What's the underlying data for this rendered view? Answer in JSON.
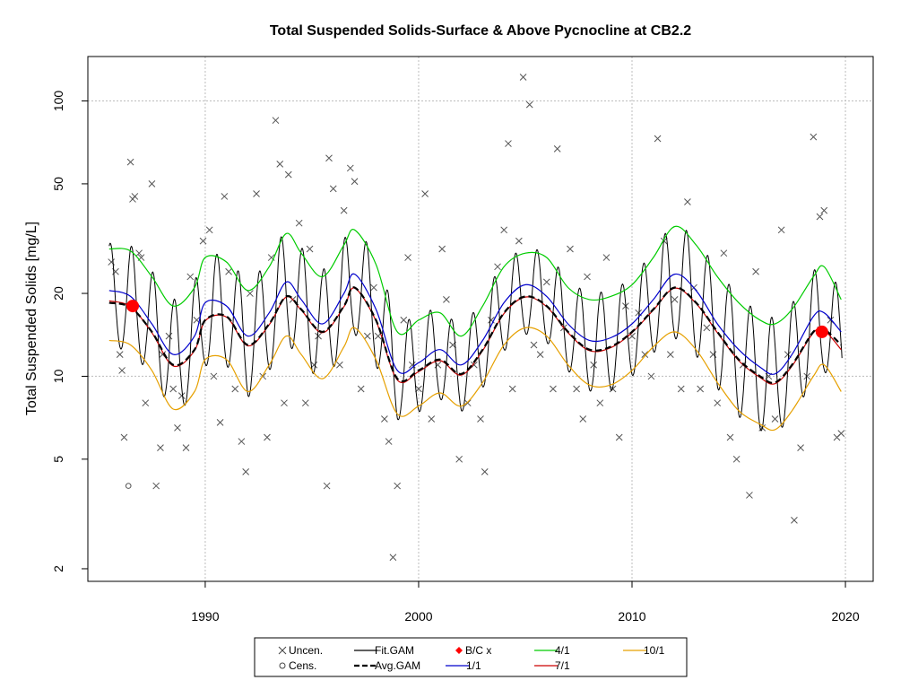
{
  "chart_data": {
    "type": "line",
    "title": "Total Suspended Solids-Surface & Above Pycnocline at CB2.2",
    "xlabel": "",
    "ylabel": "Total Suspended Solids [mg/L]",
    "y_scale": "log",
    "xlim": [
      1984.5,
      2021.3
    ],
    "ylim": [
      1.8,
      145
    ],
    "x_ticks": [
      1990,
      2000,
      2010,
      2020
    ],
    "y_ticks": [
      2,
      5,
      10,
      20,
      50,
      100
    ],
    "grid": true,
    "legend_position": "bottom",
    "legend": [
      {
        "label": "Uncen.",
        "symbol": "x",
        "color": "#444444"
      },
      {
        "label": "Cens.",
        "symbol": "o",
        "color": "#444444"
      },
      {
        "label": "Fit.GAM",
        "symbol": "line",
        "color": "#000000"
      },
      {
        "label": "Avg.GAM",
        "symbol": "dashed",
        "color": "#000000"
      },
      {
        "label": "B/C x",
        "symbol": "diamond",
        "color": "#ff0000"
      },
      {
        "label": "1/1",
        "symbol": "line",
        "color": "#0000cc"
      },
      {
        "label": "4/1",
        "symbol": "line",
        "color": "#00cc00"
      },
      {
        "label": "7/1",
        "symbol": "line",
        "color": "#cc0000"
      },
      {
        "label": "10/1",
        "symbol": "line",
        "color": "#e6a000"
      }
    ],
    "series": [
      {
        "name": "Avg.GAM",
        "x": [
          1985.5,
          1986.5,
          1987.5,
          1988.5,
          1989.5,
          1990.0,
          1991.0,
          1992.0,
          1993.0,
          1993.8,
          1994.5,
          1995.5,
          1996.5,
          1997.0,
          1998.0,
          1999.0,
          2000.0,
          2001.0,
          2002.0,
          2003.0,
          2004.0,
          2005.0,
          2006.0,
          2007.0,
          2008.0,
          2009.0,
          2010.0,
          2011.0,
          2012.0,
          2013.0,
          2014.0,
          2015.0,
          2016.0,
          2016.7,
          2017.5,
          2018.5,
          2019.0,
          2019.8
        ],
        "values": [
          18.5,
          17.8,
          14.5,
          11.0,
          12.5,
          16.0,
          16.5,
          13.0,
          15.5,
          19.5,
          17.5,
          14.5,
          18.0,
          21.0,
          16.0,
          9.8,
          10.5,
          11.5,
          10.2,
          12.5,
          17.0,
          19.5,
          18.0,
          14.5,
          12.5,
          12.8,
          14.5,
          17.5,
          21.0,
          18.5,
          14.5,
          11.5,
          10.0,
          9.5,
          11.0,
          14.5,
          14.8,
          13.0
        ]
      },
      {
        "name": "1/1",
        "x": [
          1985.5,
          1986.5,
          1987.5,
          1988.5,
          1989.5,
          1990.0,
          1991.0,
          1992.0,
          1993.0,
          1993.8,
          1994.5,
          1995.5,
          1996.5,
          1997.0,
          1998.0,
          1999.0,
          2000.0,
          2001.0,
          2002.0,
          2003.0,
          2004.0,
          2005.0,
          2006.0,
          2007.0,
          2008.0,
          2009.0,
          2010.0,
          2011.0,
          2012.0,
          2013.0,
          2014.0,
          2015.0,
          2016.0,
          2016.7,
          2017.5,
          2018.5,
          2019.0,
          2019.8
        ],
        "values": [
          20.5,
          19.5,
          15.5,
          12.0,
          14.0,
          18.5,
          18.0,
          14.0,
          17.0,
          22.0,
          19.0,
          15.5,
          20.0,
          23.5,
          17.5,
          10.5,
          11.2,
          12.5,
          11.0,
          13.5,
          18.5,
          21.5,
          19.5,
          15.5,
          13.5,
          13.8,
          15.5,
          19.0,
          23.5,
          20.5,
          15.5,
          12.5,
          10.8,
          10.2,
          12.0,
          16.5,
          17.0,
          14.5
        ]
      },
      {
        "name": "4/1",
        "x": [
          1985.5,
          1986.5,
          1987.5,
          1988.5,
          1989.5,
          1990.0,
          1991.0,
          1992.0,
          1993.0,
          1993.8,
          1994.5,
          1995.5,
          1996.5,
          1997.0,
          1998.0,
          1999.0,
          2000.0,
          2001.0,
          2002.0,
          2003.0,
          2004.0,
          2005.0,
          2006.0,
          2007.0,
          2008.0,
          2009.0,
          2010.0,
          2011.0,
          2012.0,
          2013.0,
          2014.0,
          2015.0,
          2016.0,
          2016.7,
          2017.5,
          2018.5,
          2019.0,
          2019.8
        ],
        "values": [
          29.0,
          28.5,
          23.0,
          18.0,
          21.0,
          27.0,
          26.0,
          20.5,
          25.0,
          33.0,
          28.0,
          23.0,
          30.0,
          34.0,
          25.5,
          14.5,
          16.0,
          17.0,
          14.0,
          18.0,
          25.0,
          28.0,
          27.0,
          21.0,
          19.0,
          19.5,
          21.5,
          27.0,
          35.0,
          30.0,
          23.0,
          18.5,
          16.0,
          15.5,
          17.5,
          23.0,
          25.0,
          19.0
        ]
      },
      {
        "name": "7/1",
        "x": [
          1985.5,
          1986.5,
          1987.5,
          1988.5,
          1989.5,
          1990.0,
          1991.0,
          1992.0,
          1993.0,
          1993.8,
          1994.5,
          1995.5,
          1996.5,
          1997.0,
          1998.0,
          1999.0,
          2000.0,
          2001.0,
          2002.0,
          2003.0,
          2004.0,
          2005.0,
          2006.0,
          2007.0,
          2008.0,
          2009.0,
          2010.0,
          2011.0,
          2012.0,
          2013.0,
          2014.0,
          2015.0,
          2016.0,
          2016.7,
          2017.5,
          2018.5,
          2019.0,
          2019.8
        ],
        "values": [
          18.8,
          17.9,
          14.4,
          10.9,
          12.4,
          15.9,
          16.4,
          12.9,
          15.4,
          19.4,
          17.4,
          14.4,
          17.9,
          20.9,
          15.9,
          9.7,
          10.4,
          11.4,
          10.1,
          12.4,
          16.9,
          19.4,
          17.9,
          14.4,
          12.4,
          12.7,
          14.4,
          17.4,
          20.9,
          18.4,
          14.4,
          11.4,
          9.9,
          9.4,
          10.9,
          14.4,
          14.7,
          12.5
        ]
      },
      {
        "name": "10/1",
        "x": [
          1985.5,
          1986.5,
          1987.5,
          1988.5,
          1989.5,
          1990.0,
          1991.0,
          1992.0,
          1993.0,
          1993.8,
          1994.5,
          1995.5,
          1996.5,
          1997.0,
          1998.0,
          1999.0,
          2000.0,
          2001.0,
          2002.0,
          2003.0,
          2004.0,
          2005.0,
          2006.0,
          2007.0,
          2008.0,
          2009.0,
          2010.0,
          2011.0,
          2012.0,
          2013.0,
          2014.0,
          2015.0,
          2016.0,
          2016.7,
          2017.5,
          2018.5,
          2019.0,
          2019.8
        ],
        "values": [
          13.5,
          13.0,
          10.5,
          7.6,
          8.8,
          11.5,
          11.5,
          8.8,
          11.0,
          14.0,
          12.0,
          9.8,
          12.8,
          15.0,
          11.5,
          7.3,
          7.8,
          8.7,
          7.8,
          9.5,
          13.0,
          15.0,
          14.0,
          11.0,
          9.3,
          9.3,
          10.5,
          12.8,
          14.5,
          12.5,
          9.5,
          7.5,
          6.7,
          6.4,
          7.5,
          10.0,
          11.0,
          8.8
        ]
      }
    ],
    "fit_gam_note": "seasonal oscillation around Avg.GAM",
    "bc_points": [
      {
        "x": 1986.6,
        "y": 18.0
      },
      {
        "x": 2018.9,
        "y": 14.5
      }
    ],
    "observations_uncensored": [
      [
        1985.6,
        26
      ],
      [
        1985.8,
        24
      ],
      [
        1986.0,
        12
      ],
      [
        1986.1,
        10.5
      ],
      [
        1986.2,
        6
      ],
      [
        1986.5,
        60
      ],
      [
        1986.6,
        44
      ],
      [
        1986.7,
        45
      ],
      [
        1986.9,
        28
      ],
      [
        1987.0,
        27
      ],
      [
        1987.2,
        8
      ],
      [
        1987.5,
        50
      ],
      [
        1987.7,
        4
      ],
      [
        1987.9,
        5.5
      ],
      [
        1988.0,
        12
      ],
      [
        1988.3,
        14
      ],
      [
        1988.5,
        9
      ],
      [
        1988.7,
        6.5
      ],
      [
        1988.9,
        8.5
      ],
      [
        1989.1,
        5.5
      ],
      [
        1989.3,
        23
      ],
      [
        1989.6,
        16
      ],
      [
        1989.9,
        31
      ],
      [
        1990.2,
        34
      ],
      [
        1990.4,
        10
      ],
      [
        1990.7,
        6.8
      ],
      [
        1990.9,
        45
      ],
      [
        1991.1,
        24
      ],
      [
        1991.4,
        9
      ],
      [
        1991.7,
        5.8
      ],
      [
        1991.9,
        4.5
      ],
      [
        1992.1,
        20
      ],
      [
        1992.4,
        46
      ],
      [
        1992.7,
        10
      ],
      [
        1992.9,
        6
      ],
      [
        1993.1,
        27
      ],
      [
        1993.3,
        85
      ],
      [
        1993.5,
        59
      ],
      [
        1993.7,
        8
      ],
      [
        1993.9,
        54
      ],
      [
        1994.1,
        19
      ],
      [
        1994.4,
        36
      ],
      [
        1994.7,
        8
      ],
      [
        1994.9,
        29
      ],
      [
        1995.1,
        11
      ],
      [
        1995.3,
        14
      ],
      [
        1995.7,
        4
      ],
      [
        1995.8,
        62
      ],
      [
        1996.0,
        48
      ],
      [
        1996.3,
        11
      ],
      [
        1996.5,
        40
      ],
      [
        1996.8,
        57
      ],
      [
        1997.0,
        51
      ],
      [
        1997.3,
        9
      ],
      [
        1997.6,
        14
      ],
      [
        1997.9,
        21
      ],
      [
        1998.1,
        14
      ],
      [
        1998.4,
        7
      ],
      [
        1998.6,
        5.8
      ],
      [
        1998.8,
        2.2
      ],
      [
        1999.0,
        4
      ],
      [
        1999.3,
        16
      ],
      [
        1999.5,
        27
      ],
      [
        1999.7,
        11
      ],
      [
        2000.0,
        9
      ],
      [
        2000.3,
        46
      ],
      [
        2000.6,
        7
      ],
      [
        2000.9,
        11
      ],
      [
        2001.1,
        29
      ],
      [
        2001.3,
        19
      ],
      [
        2001.6,
        13
      ],
      [
        2001.9,
        5
      ],
      [
        2002.3,
        8
      ],
      [
        2002.6,
        11
      ],
      [
        2002.9,
        7
      ],
      [
        2003.1,
        4.5
      ],
      [
        2003.4,
        16
      ],
      [
        2003.7,
        25
      ],
      [
        2004.0,
        34
      ],
      [
        2004.2,
        70
      ],
      [
        2004.4,
        9
      ],
      [
        2004.7,
        31
      ],
      [
        2004.9,
        122
      ],
      [
        2005.2,
        97
      ],
      [
        2005.4,
        13
      ],
      [
        2005.7,
        12
      ],
      [
        2006.0,
        22
      ],
      [
        2006.3,
        9
      ],
      [
        2006.5,
        67
      ],
      [
        2006.8,
        15
      ],
      [
        2007.1,
        29
      ],
      [
        2007.4,
        9
      ],
      [
        2007.7,
        7
      ],
      [
        2007.9,
        23
      ],
      [
        2008.2,
        11
      ],
      [
        2008.5,
        8
      ],
      [
        2008.8,
        27
      ],
      [
        2009.1,
        9
      ],
      [
        2009.4,
        6
      ],
      [
        2009.7,
        18
      ],
      [
        2010.0,
        14
      ],
      [
        2010.3,
        17
      ],
      [
        2010.6,
        12
      ],
      [
        2010.9,
        10
      ],
      [
        2011.2,
        73
      ],
      [
        2011.5,
        31
      ],
      [
        2011.8,
        12
      ],
      [
        2012.0,
        19
      ],
      [
        2012.3,
        9
      ],
      [
        2012.6,
        43
      ],
      [
        2012.9,
        21
      ],
      [
        2013.2,
        9
      ],
      [
        2013.5,
        15
      ],
      [
        2013.8,
        12
      ],
      [
        2014.0,
        8
      ],
      [
        2014.3,
        28
      ],
      [
        2014.6,
        6
      ],
      [
        2014.9,
        5
      ],
      [
        2015.2,
        11
      ],
      [
        2015.5,
        3.7
      ],
      [
        2015.8,
        24
      ],
      [
        2016.1,
        6.5
      ],
      [
        2016.4,
        10
      ],
      [
        2016.7,
        7
      ],
      [
        2017.0,
        34
      ],
      [
        2017.3,
        12
      ],
      [
        2017.6,
        3
      ],
      [
        2017.9,
        5.5
      ],
      [
        2018.2,
        10
      ],
      [
        2018.5,
        74
      ],
      [
        2018.8,
        38
      ],
      [
        2019.0,
        40
      ],
      [
        2019.3,
        16
      ],
      [
        2019.6,
        6
      ],
      [
        2019.8,
        6.2
      ]
    ],
    "observations_censored": [
      [
        1986.4,
        4
      ]
    ]
  }
}
